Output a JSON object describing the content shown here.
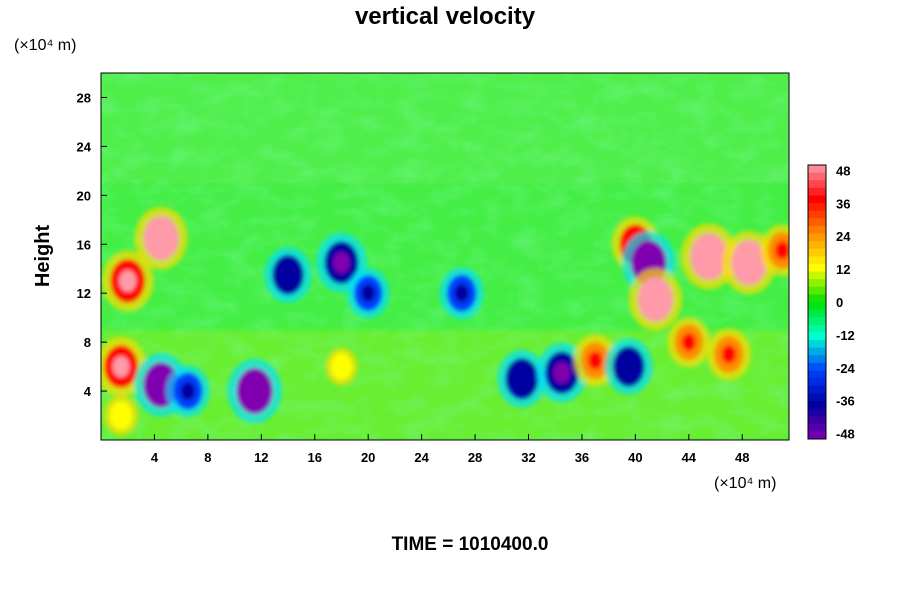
{
  "chart_data": {
    "type": "heatmap",
    "title": "vertical velocity",
    "ylabel": "Height",
    "x_unit": "(×10⁴ m)",
    "y_unit": "(×10⁴ m)",
    "footer": "TIME = 1010400.0",
    "xlim": [
      0,
      51.5
    ],
    "ylim": [
      0,
      30
    ],
    "x_ticks": [
      "4",
      "8",
      "12",
      "16",
      "20",
      "24",
      "28",
      "32",
      "36",
      "40",
      "44",
      "48"
    ],
    "y_ticks": [
      "4",
      "8",
      "12",
      "16",
      "20",
      "24",
      "28"
    ],
    "colorbar": {
      "range": [
        -50,
        50
      ],
      "ticks": [
        "48",
        "36",
        "24",
        "12",
        "0",
        "-12",
        "-24",
        "-36",
        "-48"
      ],
      "colors": [
        "#ff9aa8",
        "#ff0000",
        "#ff8c00",
        "#ffff00",
        "#00e000",
        "#00ffd0",
        "#0040ff",
        "#0000a0",
        "#8000b0"
      ]
    },
    "features": [
      {
        "x": 2.0,
        "y": 13.0,
        "value": 42
      },
      {
        "x": 4.5,
        "y": 16.5,
        "value": 44
      },
      {
        "x": 1.5,
        "y": 6.0,
        "value": 40
      },
      {
        "x": 4.5,
        "y": 4.5,
        "value": -45
      },
      {
        "x": 6.5,
        "y": 4.0,
        "value": -30
      },
      {
        "x": 11.5,
        "y": 4.0,
        "value": -46
      },
      {
        "x": 14.0,
        "y": 13.5,
        "value": -35
      },
      {
        "x": 18.0,
        "y": 14.5,
        "value": -40
      },
      {
        "x": 20.0,
        "y": 12.0,
        "value": -28
      },
      {
        "x": 27.0,
        "y": 12.0,
        "value": -30
      },
      {
        "x": 31.5,
        "y": 5.0,
        "value": -38
      },
      {
        "x": 34.5,
        "y": 5.5,
        "value": -40
      },
      {
        "x": 37.0,
        "y": 6.5,
        "value": 30
      },
      {
        "x": 39.5,
        "y": 6.0,
        "value": -36
      },
      {
        "x": 40.0,
        "y": 16.0,
        "value": 35
      },
      {
        "x": 41.0,
        "y": 14.5,
        "value": -44
      },
      {
        "x": 41.5,
        "y": 11.5,
        "value": 44
      },
      {
        "x": 45.5,
        "y": 15.0,
        "value": 48
      },
      {
        "x": 48.5,
        "y": 14.5,
        "value": 45
      },
      {
        "x": 47.0,
        "y": 7.0,
        "value": 30
      },
      {
        "x": 44.0,
        "y": 8.0,
        "value": 28
      },
      {
        "x": 1.5,
        "y": 2.0,
        "value": 15
      },
      {
        "x": 18.0,
        "y": 6.0,
        "value": 12
      },
      {
        "x": 51.0,
        "y": 15.5,
        "value": 30
      }
    ]
  }
}
